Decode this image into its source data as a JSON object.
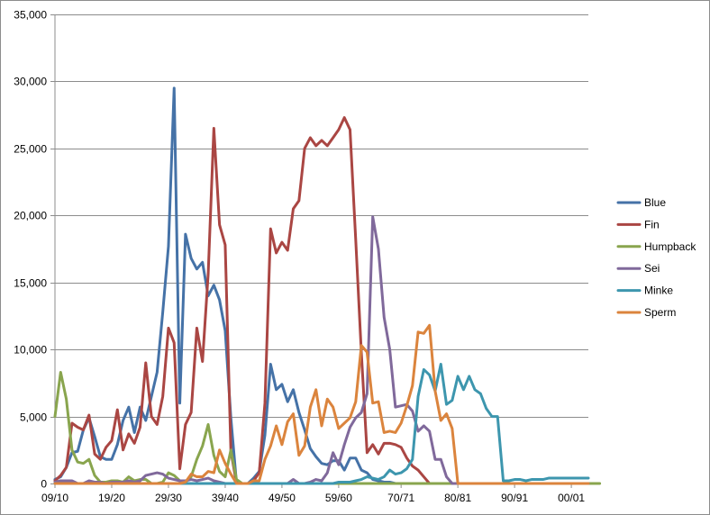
{
  "chart_data": {
    "type": "line",
    "title": "",
    "xlabel": "",
    "ylabel": "",
    "ylim": [
      0,
      35000
    ],
    "y_ticks": [
      "0",
      "5,000",
      "10,000",
      "15,000",
      "20,000",
      "25,000",
      "30,000",
      "35,000"
    ],
    "y_tick_values": [
      0,
      5000,
      10000,
      15000,
      20000,
      25000,
      30000,
      35000
    ],
    "x_ticks": [
      "09/10",
      "19/20",
      "29/30",
      "39/40",
      "49/50",
      "59/60",
      "70/71",
      "80/81",
      "90/91",
      "00/01"
    ],
    "x_tick_index": [
      0,
      10,
      20,
      30,
      40,
      50,
      61,
      71,
      81,
      91
    ],
    "grid": true,
    "legend_position": "right",
    "series": [
      {
        "name": "Blue",
        "color": "#4572A7",
        "values": [
          300,
          500,
          1200,
          2300,
          2400,
          4000,
          4900,
          3500,
          2000,
          1800,
          1800,
          2900,
          4700,
          5700,
          3800,
          5700,
          4700,
          6500,
          8300,
          12800,
          17700,
          29500,
          6000,
          18600,
          16800,
          16000,
          16500,
          14000,
          14800,
          13700,
          11400,
          4900,
          0,
          0,
          0,
          400,
          900,
          3600,
          8900,
          7000,
          7400,
          6100,
          7000,
          5300,
          4000,
          2600,
          2000,
          1500,
          1400,
          1700,
          1700,
          1000,
          1900,
          1900,
          1000,
          800,
          300,
          200,
          100,
          100,
          0,
          0,
          0,
          0,
          0,
          0,
          0,
          0,
          0,
          0,
          0,
          0,
          0,
          0,
          0,
          0,
          0,
          0,
          0,
          0,
          0,
          0,
          0,
          0,
          0,
          0,
          0,
          0,
          0,
          0,
          0,
          0,
          0,
          0,
          0
        ]
      },
      {
        "name": "Fin",
        "color": "#AA4643",
        "values": [
          200,
          600,
          1200,
          4500,
          4200,
          4000,
          5100,
          2200,
          1800,
          2700,
          3200,
          5500,
          2500,
          3700,
          3000,
          4200,
          9000,
          5000,
          4400,
          6500,
          11600,
          10500,
          1100,
          4400,
          5300,
          11600,
          9100,
          15600,
          26500,
          19300,
          17800,
          2400,
          0,
          0,
          0,
          200,
          800,
          6000,
          19000,
          17200,
          18000,
          17400,
          20500,
          21100,
          25000,
          25800,
          25200,
          25600,
          25200,
          25800,
          26400,
          27300,
          26400,
          18200,
          9700,
          2300,
          2900,
          2200,
          3000,
          3000,
          2900,
          2700,
          1900,
          1300,
          1000,
          500,
          0,
          0,
          0,
          0,
          0,
          0,
          0,
          0,
          0,
          0,
          0,
          0,
          0,
          0,
          0,
          0,
          0,
          0,
          0,
          0,
          0,
          0,
          0,
          0,
          0,
          0,
          0,
          0,
          0,
          0
        ]
      },
      {
        "name": "Humpback",
        "color": "#89A54E",
        "values": [
          5000,
          8300,
          6300,
          2500,
          1600,
          1500,
          1800,
          600,
          100,
          100,
          200,
          200,
          100,
          500,
          200,
          300,
          300,
          0,
          0,
          100,
          800,
          600,
          200,
          100,
          500,
          1800,
          2800,
          4400,
          2100,
          900,
          500,
          2500,
          300,
          0,
          0,
          0,
          0,
          0,
          0,
          0,
          0,
          0,
          0,
          0,
          0,
          0,
          0,
          0,
          0,
          0,
          0,
          0,
          0,
          0,
          0,
          0,
          0,
          0,
          0,
          0,
          0,
          0,
          0,
          0,
          0,
          0,
          0,
          0,
          0,
          0,
          0,
          0,
          0,
          0,
          0,
          0,
          0,
          0,
          0,
          0,
          0,
          0,
          0,
          0,
          0,
          0,
          0,
          0,
          0,
          0,
          0,
          0,
          0,
          0,
          0,
          0,
          0
        ]
      },
      {
        "name": "Sei",
        "color": "#80699B",
        "values": [
          100,
          200,
          200,
          200,
          0,
          0,
          200,
          100,
          100,
          0,
          100,
          100,
          100,
          200,
          100,
          200,
          600,
          700,
          800,
          700,
          400,
          300,
          200,
          200,
          300,
          200,
          300,
          400,
          200,
          100,
          0,
          0,
          0,
          0,
          0,
          0,
          0,
          0,
          0,
          0,
          0,
          0,
          300,
          0,
          0,
          100,
          300,
          200,
          800,
          2300,
          1400,
          2900,
          4200,
          4900,
          5300,
          6700,
          19900,
          17500,
          12400,
          10000,
          5700,
          5800,
          5900,
          5400,
          3900,
          4300,
          3900,
          1800,
          1800,
          500,
          0,
          0,
          0,
          0,
          0,
          0,
          0,
          0,
          0,
          0,
          0,
          0,
          0,
          0,
          0,
          0,
          0,
          0,
          0,
          0,
          0,
          0,
          0,
          0,
          0
        ]
      },
      {
        "name": "Minke",
        "color": "#3D96AE",
        "values": [
          0,
          0,
          0,
          0,
          0,
          0,
          0,
          0,
          0,
          0,
          0,
          0,
          0,
          0,
          0,
          0,
          0,
          0,
          0,
          0,
          0,
          0,
          0,
          0,
          0,
          0,
          0,
          0,
          0,
          0,
          0,
          0,
          0,
          0,
          0,
          0,
          0,
          0,
          0,
          0,
          0,
          0,
          0,
          0,
          0,
          0,
          0,
          0,
          0,
          0,
          100,
          100,
          100,
          200,
          300,
          500,
          400,
          300,
          500,
          1000,
          700,
          800,
          1100,
          1800,
          6500,
          8500,
          8100,
          6900,
          8900,
          5900,
          6200,
          8000,
          7000,
          8000,
          7000,
          6700,
          5600,
          5000,
          5000,
          200,
          200,
          300,
          300,
          200,
          300,
          300,
          300,
          400,
          400,
          400,
          400,
          400,
          400,
          400,
          400
        ]
      },
      {
        "name": "Sperm",
        "color": "#DB843D",
        "values": [
          0,
          0,
          0,
          0,
          0,
          0,
          0,
          0,
          0,
          0,
          0,
          0,
          0,
          0,
          0,
          0,
          0,
          0,
          0,
          0,
          0,
          0,
          0,
          100,
          700,
          500,
          500,
          900,
          800,
          2500,
          1500,
          700,
          0,
          0,
          0,
          200,
          200,
          1800,
          2800,
          4300,
          2900,
          4600,
          5200,
          2100,
          2800,
          5700,
          7000,
          4300,
          6300,
          5700,
          4100,
          4500,
          4900,
          6100,
          10300,
          9800,
          6000,
          6100,
          3800,
          3900,
          3800,
          4500,
          5800,
          7300,
          11300,
          11200,
          11800,
          6900,
          4700,
          5200,
          4100,
          0,
          0,
          0,
          0,
          0,
          0,
          0,
          0,
          0,
          0,
          0,
          0,
          0,
          0,
          0,
          0,
          0,
          0,
          0,
          0,
          0,
          0,
          0,
          0
        ]
      }
    ]
  }
}
